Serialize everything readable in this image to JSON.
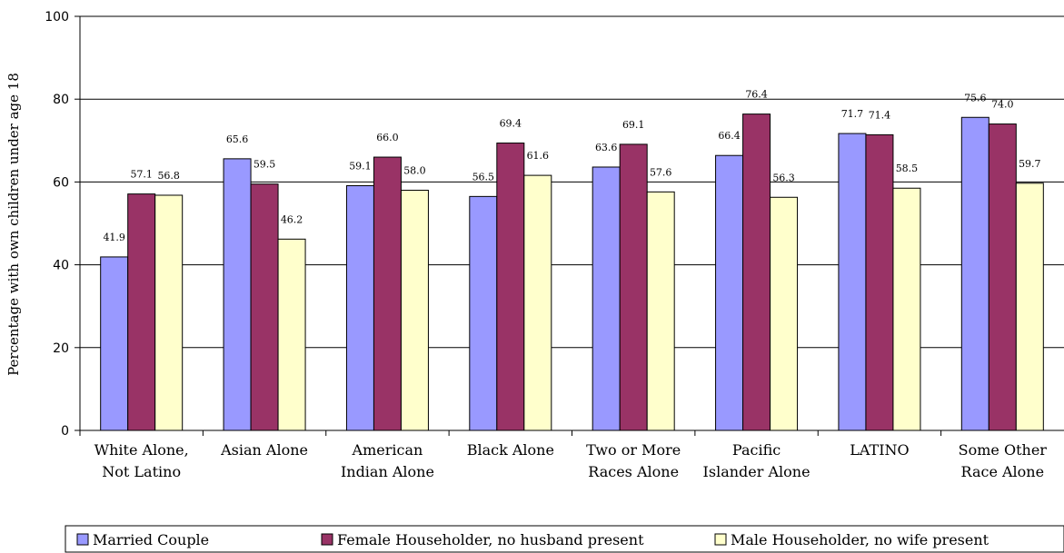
{
  "chart_data": {
    "type": "bar",
    "title": "",
    "xlabel": "",
    "ylabel": "Percentage with own children under age 18",
    "ylim": [
      0,
      100
    ],
    "yticks": [
      0,
      20,
      40,
      60,
      80,
      100
    ],
    "grid": true,
    "legend_position": "bottom",
    "categories": [
      [
        "White Alone,",
        "Not Latino"
      ],
      [
        "Asian Alone"
      ],
      [
        "American",
        "Indian Alone"
      ],
      [
        "Black Alone"
      ],
      [
        "Two or More",
        "Races Alone"
      ],
      [
        "Pacific",
        "Islander Alone"
      ],
      [
        "LATINO"
      ],
      [
        "Some Other",
        "Race Alone"
      ]
    ],
    "series": [
      {
        "name": "Married Couple",
        "color": "#9999ff",
        "values": [
          41.9,
          65.6,
          59.1,
          56.5,
          63.6,
          66.4,
          71.7,
          75.6
        ]
      },
      {
        "name": "Female Householder, no husband present",
        "color": "#993366",
        "values": [
          57.1,
          59.5,
          66.0,
          69.4,
          69.1,
          76.4,
          71.4,
          74.0
        ]
      },
      {
        "name": "Male Householder, no wife present",
        "color": "#ffffcc",
        "values": [
          56.8,
          46.2,
          58.0,
          61.6,
          57.6,
          56.3,
          58.5,
          59.7
        ]
      }
    ]
  }
}
